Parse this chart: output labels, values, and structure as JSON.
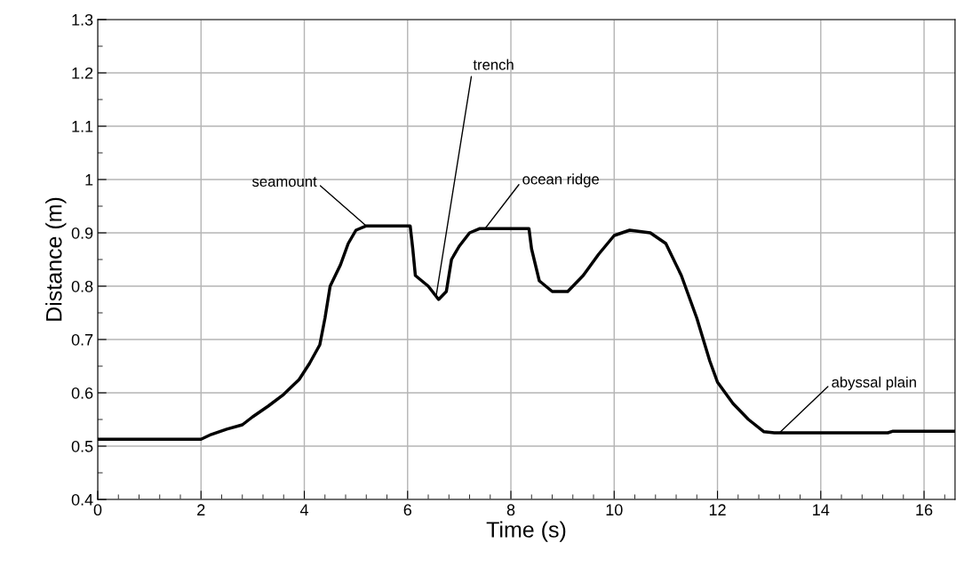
{
  "chart_data": {
    "type": "line",
    "xlabel": "Time (s)",
    "ylabel": "Distance (m)",
    "x": [
      0,
      2.0,
      2.2,
      2.5,
      2.8,
      3.0,
      3.3,
      3.6,
      3.9,
      4.1,
      4.3,
      4.4,
      4.5,
      4.7,
      4.85,
      5.0,
      5.2,
      6.05,
      6.1,
      6.15,
      6.4,
      6.6,
      6.75,
      6.85,
      7.0,
      7.2,
      7.4,
      8.35,
      8.4,
      8.55,
      8.8,
      9.1,
      9.4,
      9.7,
      10.0,
      10.3,
      10.7,
      11.0,
      11.3,
      11.6,
      11.85,
      12.0,
      12.3,
      12.6,
      12.9,
      13.1,
      15.3,
      15.4,
      16.6
    ],
    "series": [
      {
        "color": "#000000",
        "values": [
          0.513,
          0.513,
          0.522,
          0.532,
          0.54,
          0.555,
          0.575,
          0.597,
          0.625,
          0.655,
          0.69,
          0.74,
          0.8,
          0.84,
          0.88,
          0.905,
          0.913,
          0.913,
          0.87,
          0.82,
          0.8,
          0.775,
          0.79,
          0.85,
          0.875,
          0.9,
          0.908,
          0.908,
          0.87,
          0.81,
          0.79,
          0.79,
          0.82,
          0.86,
          0.895,
          0.905,
          0.9,
          0.88,
          0.82,
          0.74,
          0.66,
          0.62,
          0.58,
          0.55,
          0.527,
          0.525,
          0.525,
          0.528,
          0.528
        ]
      }
    ],
    "xlim": [
      0,
      16.6
    ],
    "ylim": [
      0.4,
      1.3
    ],
    "xticks": [
      0,
      2,
      4,
      6,
      8,
      10,
      12,
      14,
      16
    ],
    "yticks": [
      0.4,
      0.5,
      0.6,
      0.7,
      0.8,
      0.9,
      1,
      1.1,
      1.2,
      1.3
    ],
    "grid": true,
    "legend": false,
    "marker": "none",
    "line_style": "solid",
    "annotations": [
      {
        "text": "seamount",
        "x": 5.2,
        "y": 0.913
      },
      {
        "text": "trench",
        "x": 6.55,
        "y": 0.78
      },
      {
        "text": "ocean ridge",
        "x": 7.5,
        "y": 0.908
      },
      {
        "text": "abyssal plain",
        "x": 13.2,
        "y": 0.525
      }
    ]
  }
}
